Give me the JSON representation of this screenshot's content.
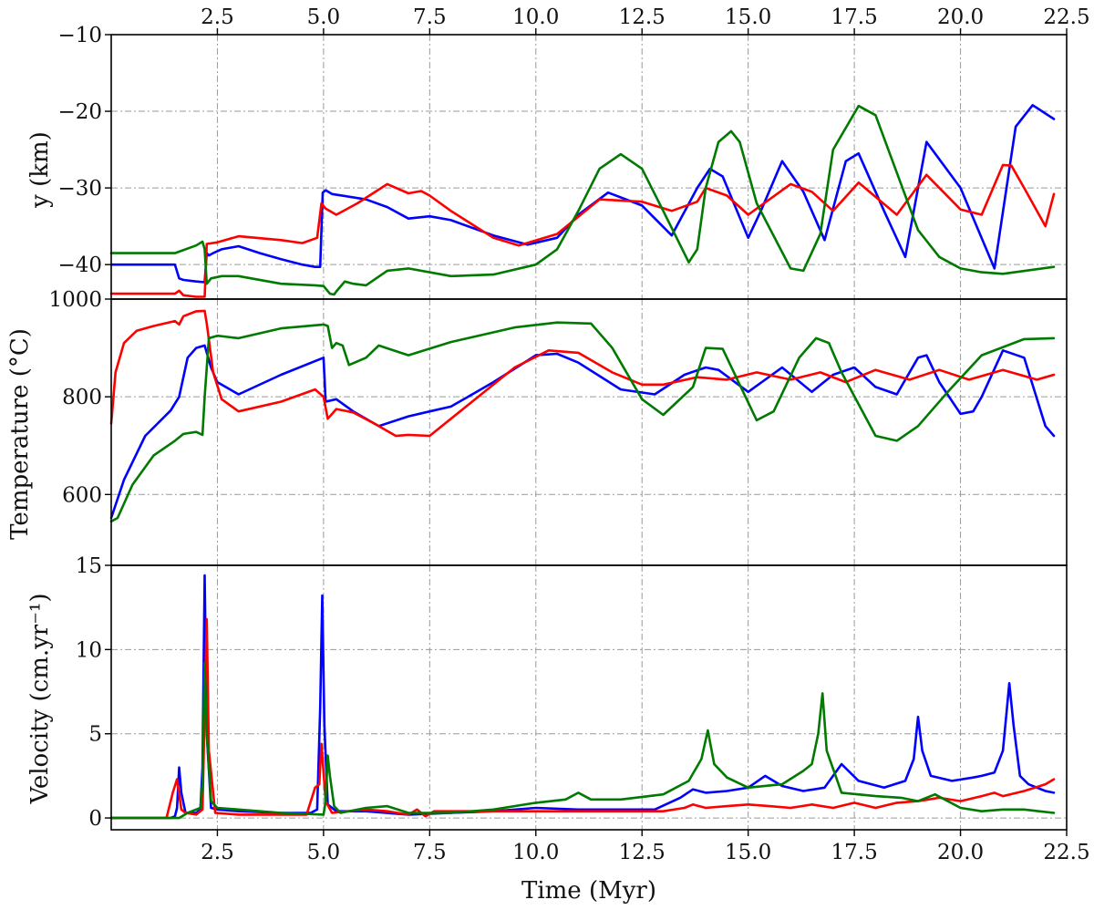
{
  "chart_data": {
    "type": "line",
    "colors": {
      "blue": "#0000ff",
      "red": "#ff0000",
      "green": "#007a00"
    },
    "xlabel": "Time (Myr)",
    "xlim": [
      0,
      22.5
    ],
    "xticks": [
      2.5,
      5.0,
      7.5,
      10.0,
      12.5,
      15.0,
      17.5,
      20.0,
      22.5
    ],
    "xtick_labels": [
      "2.5",
      "5.0",
      "7.5",
      "10.0",
      "12.5",
      "15.0",
      "17.5",
      "20.0",
      "22.5"
    ],
    "grid": true,
    "panels": [
      {
        "id": "depth",
        "ylabel": "y (km)",
        "ylim": [
          -44.5,
          -10
        ],
        "yticks": [
          -40,
          -30,
          -20,
          -10
        ],
        "ytick_labels": [
          "−40",
          "−30",
          "−20",
          "−10"
        ],
        "series": [
          {
            "color": "blue",
            "x": [
              0,
              1.5,
              1.6,
              1.7,
              2.0,
              2.2,
              2.25,
              2.3,
              2.4,
              2.6,
              3.0,
              3.5,
              4.0,
              4.5,
              4.8,
              4.92,
              4.98,
              5.05,
              5.2,
              6.0,
              6.5,
              7.0,
              7.5,
              8.0,
              9.0,
              9.8,
              10.5,
              11.0,
              11.7,
              12.5,
              13.2,
              13.8,
              14.1,
              14.4,
              15.0,
              15.3,
              15.8,
              16.3,
              16.8,
              17.3,
              17.6,
              18.2,
              18.7,
              19.2,
              20.0,
              20.8,
              21.3,
              21.7,
              22.2
            ],
            "y": [
              -40.0,
              -40.0,
              -41.8,
              -42.0,
              -42.2,
              -42.3,
              -38.5,
              -38.8,
              -38.5,
              -38.0,
              -37.6,
              -38.5,
              -39.3,
              -40.0,
              -40.3,
              -40.3,
              -30.6,
              -30.3,
              -30.8,
              -31.5,
              -32.5,
              -34.0,
              -33.7,
              -34.2,
              -36.2,
              -37.4,
              -36.5,
              -33.5,
              -30.6,
              -32.3,
              -36.2,
              -30.0,
              -27.5,
              -28.5,
              -36.5,
              -33.0,
              -26.5,
              -30.5,
              -36.8,
              -26.5,
              -25.5,
              -33.0,
              -39.0,
              -24.0,
              -30.0,
              -40.5,
              -22.0,
              -19.2,
              -21.0
            ]
          },
          {
            "color": "red",
            "x": [
              0,
              1.5,
              1.6,
              1.7,
              2.0,
              2.2,
              2.25,
              2.5,
              3.0,
              4.0,
              4.5,
              4.85,
              4.95,
              5.05,
              5.3,
              5.8,
              6.5,
              7.0,
              7.3,
              7.5,
              8.0,
              9.0,
              9.6,
              10.5,
              11.5,
              12.5,
              13.2,
              13.8,
              14.0,
              14.5,
              15.0,
              16.0,
              16.5,
              17.0,
              17.6,
              18.5,
              19.2,
              20.0,
              20.5,
              21.0,
              21.2,
              21.5,
              22.0,
              22.2
            ],
            "y": [
              -43.8,
              -43.8,
              -43.4,
              -44.0,
              -44.2,
              -44.2,
              -37.3,
              -37.1,
              -36.3,
              -36.8,
              -37.2,
              -36.5,
              -32.0,
              -32.7,
              -33.5,
              -32.0,
              -29.5,
              -30.7,
              -30.4,
              -31.0,
              -33.0,
              -36.5,
              -37.5,
              -36.0,
              -31.5,
              -31.8,
              -33.0,
              -31.8,
              -30.0,
              -31.0,
              -33.5,
              -29.5,
              -30.5,
              -33.0,
              -29.3,
              -33.5,
              -28.3,
              -32.8,
              -33.5,
              -27.0,
              -27.1,
              -30.0,
              -35.0,
              -30.8
            ]
          },
          {
            "color": "green",
            "x": [
              0,
              1.5,
              2.0,
              2.15,
              2.2,
              2.25,
              2.35,
              2.6,
              3.0,
              4.0,
              4.8,
              5.0,
              5.15,
              5.25,
              5.3,
              5.5,
              5.7,
              6.0,
              6.5,
              7.0,
              8.0,
              9.0,
              10.0,
              10.5,
              11.0,
              11.5,
              12.0,
              12.5,
              13.0,
              13.6,
              13.8,
              14.0,
              14.3,
              14.6,
              14.8,
              15.2,
              16.0,
              16.3,
              16.7,
              17.0,
              17.6,
              18.0,
              18.5,
              19.0,
              19.5,
              20.0,
              20.5,
              21.0,
              22.2
            ],
            "y": [
              -38.5,
              -38.5,
              -37.5,
              -37.0,
              -38.0,
              -42.5,
              -41.8,
              -41.5,
              -41.5,
              -42.5,
              -42.7,
              -42.8,
              -43.8,
              -43.9,
              -43.5,
              -42.2,
              -42.5,
              -42.7,
              -40.8,
              -40.5,
              -41.5,
              -41.3,
              -40.0,
              -38.0,
              -33.0,
              -27.5,
              -25.6,
              -27.5,
              -33.0,
              -39.7,
              -38.0,
              -30.0,
              -24.0,
              -22.6,
              -24.0,
              -32.0,
              -40.5,
              -40.8,
              -36.0,
              -25.0,
              -19.3,
              -20.5,
              -28.0,
              -35.5,
              -39.0,
              -40.5,
              -41.0,
              -41.2,
              -40.3
            ]
          }
        ]
      },
      {
        "id": "temperature",
        "ylabel": "Temperature (°C)",
        "ylim": [
          455,
          1000
        ],
        "yticks": [
          600,
          800,
          1000
        ],
        "ytick_labels": [
          "600",
          "800",
          "1000"
        ],
        "series": [
          {
            "color": "blue",
            "x": [
              0,
              0.3,
              0.8,
              1.4,
              1.6,
              1.8,
              2.0,
              2.2,
              2.35,
              2.5,
              3.0,
              4.0,
              5.0,
              5.05,
              5.3,
              5.7,
              6.3,
              7.0,
              7.5,
              8.0,
              9.0,
              10.0,
              10.5,
              11.0,
              12.0,
              12.8,
              13.5,
              14.0,
              14.3,
              15.0,
              15.8,
              16.5,
              17.0,
              17.5,
              18.0,
              18.5,
              19.0,
              19.2,
              19.5,
              20.0,
              20.3,
              20.5,
              21.0,
              21.5,
              22.0,
              22.2
            ],
            "y": [
              552,
              630,
              720,
              772,
              800,
              880,
              900,
              905,
              860,
              830,
              805,
              845,
              880,
              790,
              795,
              770,
              740,
              760,
              770,
              780,
              830,
              885,
              888,
              870,
              815,
              805,
              845,
              860,
              855,
              810,
              860,
              810,
              845,
              860,
              820,
              805,
              880,
              885,
              830,
              765,
              770,
              800,
              895,
              880,
              740,
              720
            ]
          },
          {
            "color": "red",
            "x": [
              0,
              0.1,
              0.3,
              0.6,
              1.0,
              1.5,
              1.6,
              1.7,
              2.0,
              2.2,
              2.25,
              2.4,
              2.6,
              3.0,
              4.0,
              4.8,
              5.0,
              5.1,
              5.3,
              5.7,
              6.2,
              6.7,
              7.0,
              7.5,
              8.5,
              9.5,
              10.3,
              11.0,
              11.8,
              12.5,
              13.0,
              13.8,
              14.5,
              15.2,
              16.0,
              16.7,
              17.3,
              18.0,
              18.8,
              19.5,
              20.2,
              21.0,
              21.8,
              22.2
            ],
            "y": [
              745,
              850,
              910,
              935,
              945,
              955,
              948,
              965,
              975,
              976,
              950,
              850,
              795,
              770,
              790,
              815,
              800,
              755,
              775,
              768,
              745,
              720,
              722,
              720,
              790,
              860,
              895,
              890,
              850,
              825,
              825,
              840,
              835,
              850,
              835,
              850,
              830,
              855,
              835,
              855,
              835,
              855,
              835,
              845
            ]
          },
          {
            "color": "green",
            "x": [
              0,
              0.15,
              0.5,
              1.0,
              1.5,
              1.7,
              2.0,
              2.15,
              2.2,
              2.3,
              2.5,
              3.0,
              4.0,
              5.0,
              5.1,
              5.2,
              5.3,
              5.45,
              5.6,
              6.0,
              6.3,
              7.0,
              8.0,
              9.5,
              10.5,
              11.3,
              11.8,
              12.5,
              13.0,
              13.7,
              14.0,
              14.4,
              15.2,
              15.6,
              16.2,
              16.6,
              16.9,
              17.2,
              18.0,
              18.5,
              19.0,
              19.7,
              20.5,
              21.5,
              22.2
            ],
            "y": [
              545,
              552,
              620,
              680,
              710,
              724,
              728,
              722,
              800,
              920,
              925,
              920,
              940,
              948,
              945,
              900,
              910,
              905,
              865,
              880,
              905,
              885,
              912,
              942,
              952,
              950,
              900,
              795,
              763,
              820,
              900,
              898,
              752,
              770,
              880,
              920,
              910,
              850,
              720,
              710,
              740,
              810,
              885,
              918,
              920
            ]
          }
        ]
      },
      {
        "id": "velocity",
        "ylabel": "Velocity (cm.yr⁻¹)",
        "ylim": [
          -0.7,
          15
        ],
        "yticks": [
          0,
          5,
          10,
          15
        ],
        "ytick_labels": [
          "0",
          "5",
          "10",
          "15"
        ],
        "series": [
          {
            "color": "blue",
            "x": [
              0,
              1.4,
              1.5,
              1.55,
              1.6,
              1.65,
              1.75,
              2.0,
              2.1,
              2.15,
              2.2,
              2.25,
              2.35,
              2.5,
              3.0,
              4.0,
              4.7,
              4.85,
              4.92,
              4.97,
              5.02,
              5.1,
              5.3,
              6.0,
              7.0,
              8.0,
              9.0,
              10.0,
              11.0,
              12.0,
              12.8,
              13.4,
              13.7,
              14.0,
              14.5,
              15.0,
              15.4,
              15.8,
              16.3,
              16.8,
              17.2,
              17.6,
              18.2,
              18.7,
              18.9,
              19.0,
              19.1,
              19.3,
              19.8,
              20.3,
              20.5,
              20.8,
              21.0,
              21.15,
              21.25,
              21.4,
              21.6,
              22.0,
              22.2
            ],
            "y": [
              0,
              0,
              0.1,
              0.6,
              3.0,
              1.5,
              0.3,
              0.3,
              0.5,
              3.0,
              14.4,
              5.0,
              0.6,
              0.5,
              0.4,
              0.3,
              0.3,
              0.5,
              6.5,
              13.2,
              5.5,
              0.8,
              0.4,
              0.4,
              0.2,
              0.3,
              0.4,
              0.6,
              0.5,
              0.5,
              0.5,
              1.2,
              1.7,
              1.5,
              1.6,
              1.8,
              2.5,
              1.9,
              1.6,
              1.8,
              3.2,
              2.2,
              1.8,
              2.2,
              3.5,
              6.0,
              4.0,
              2.5,
              2.2,
              2.4,
              2.5,
              2.7,
              4.0,
              8.0,
              5.5,
              2.5,
              2.0,
              1.6,
              1.5
            ]
          },
          {
            "color": "red",
            "x": [
              0,
              1.3,
              1.45,
              1.55,
              1.65,
              1.75,
              2.0,
              2.15,
              2.25,
              2.3,
              2.45,
              3.0,
              4.0,
              4.6,
              4.8,
              4.9,
              4.95,
              5.05,
              5.2,
              6.0,
              6.5,
              7.0,
              7.2,
              7.4,
              7.6,
              8.0,
              9.0,
              10.0,
              11.0,
              12.0,
              13.0,
              13.5,
              13.7,
              14.0,
              14.5,
              15.0,
              15.5,
              16.0,
              16.5,
              17.0,
              17.5,
              18.0,
              18.5,
              19.0,
              19.5,
              20.0,
              20.5,
              20.8,
              21.0,
              21.5,
              22.0,
              22.2
            ],
            "y": [
              0,
              0,
              1.5,
              2.3,
              0.5,
              0.3,
              0.2,
              0.5,
              11.8,
              4.0,
              0.3,
              0.2,
              0.2,
              0.2,
              1.8,
              2.0,
              4.4,
              1.0,
              0.3,
              0.5,
              0.4,
              0.2,
              0.5,
              0.1,
              0.4,
              0.4,
              0.4,
              0.4,
              0.4,
              0.4,
              0.4,
              0.6,
              0.8,
              0.6,
              0.7,
              0.8,
              0.7,
              0.6,
              0.8,
              0.6,
              0.9,
              0.6,
              0.9,
              1.0,
              1.2,
              1.0,
              1.3,
              1.5,
              1.3,
              1.6,
              2.0,
              2.3
            ]
          },
          {
            "color": "green",
            "x": [
              0,
              1.6,
              1.8,
              2.1,
              2.15,
              2.2,
              2.25,
              2.35,
              2.5,
              3.0,
              4.0,
              5.0,
              5.05,
              5.1,
              5.15,
              5.25,
              5.4,
              6.0,
              6.5,
              7.0,
              8.0,
              9.0,
              10.0,
              10.7,
              11.0,
              11.3,
              12.0,
              13.0,
              13.6,
              13.9,
              14.05,
              14.2,
              14.5,
              15.0,
              15.8,
              16.3,
              16.5,
              16.65,
              16.75,
              16.85,
              17.2,
              18.0,
              18.6,
              19.0,
              19.4,
              20.0,
              20.5,
              21.0,
              21.5,
              22.2
            ],
            "y": [
              0,
              0,
              0.3,
              0.6,
              2.0,
              9.2,
              5.0,
              1.0,
              0.6,
              0.5,
              0.3,
              0.2,
              1.0,
              3.7,
              2.5,
              0.7,
              0.3,
              0.6,
              0.7,
              0.3,
              0.3,
              0.5,
              0.9,
              1.1,
              1.5,
              1.1,
              1.1,
              1.4,
              2.2,
              3.5,
              5.2,
              3.2,
              2.4,
              1.8,
              2.0,
              2.8,
              3.2,
              5.0,
              7.4,
              4.0,
              1.5,
              1.3,
              1.2,
              1.0,
              1.4,
              0.6,
              0.4,
              0.5,
              0.5,
              0.3
            ]
          }
        ]
      }
    ]
  }
}
